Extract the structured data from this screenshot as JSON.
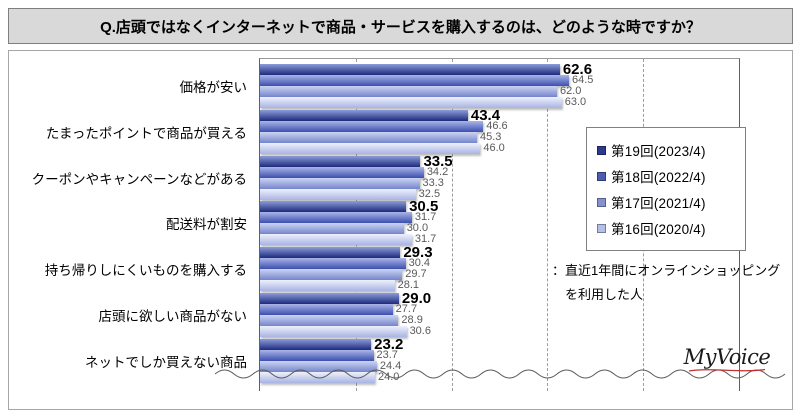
{
  "title": "Q.店頭ではなくインターネットで商品・サービスを購入するのは、どのような時ですか？",
  "chart_data": {
    "type": "bar",
    "orientation": "horizontal",
    "unit": "%",
    "xlim": [
      0,
      100
    ],
    "gridlines_pct": [
      20,
      40,
      60,
      80
    ],
    "grid": "dashed-vertical",
    "legend_position": "right",
    "axis_break_wave": true,
    "categories": [
      "価格が安い",
      "たまったポイントで商品が買える",
      "クーポンやキャンペーンなどがある",
      "配送料が割安",
      "持ち帰りしにくいものを購入する",
      "店頭に欲しい商品がない",
      "ネットでしか買えない商品"
    ],
    "series": [
      {
        "name": "第19回(2023/4)",
        "marker_color": "#2c3a8e",
        "gradient_top": "#8c9bd8",
        "gradient_bottom": "#1e2b7e",
        "values": [
          62.6,
          43.4,
          33.5,
          30.5,
          29.3,
          29.0,
          23.2
        ]
      },
      {
        "name": "第18回(2022/4)",
        "marker_color": "#4c5cb4",
        "gradient_top": "#aab6e8",
        "gradient_bottom": "#3c4fae",
        "values": [
          64.5,
          46.6,
          34.2,
          31.7,
          30.4,
          27.7,
          23.7
        ]
      },
      {
        "name": "第17回(2021/4)",
        "marker_color": "#8492d0",
        "gradient_top": "#ccd4f2",
        "gradient_bottom": "#7585cc",
        "values": [
          62.0,
          45.3,
          33.3,
          30.0,
          29.7,
          28.9,
          24.4
        ]
      },
      {
        "name": "第16回(2020/4)",
        "marker_color": "#b4bfe8",
        "gradient_top": "#eef1fb",
        "gradient_bottom": "#a8b4e4",
        "values": [
          63.0,
          46.0,
          32.5,
          31.7,
          28.1,
          30.6,
          24.0
        ]
      }
    ]
  },
  "note": {
    "line1": "：直近1年間にオンラインショッピング",
    "line2": "を利用した人"
  },
  "logo_text": "MyVoice",
  "colors": {
    "title_bg": "#d9d9d9",
    "panel_border": "#a6a6a6",
    "grid": "#9b9b9b",
    "value_primary": "#000000",
    "value_secondary": "#595959",
    "wave": "#5a5a5a",
    "logo_underline": "#c03030"
  }
}
